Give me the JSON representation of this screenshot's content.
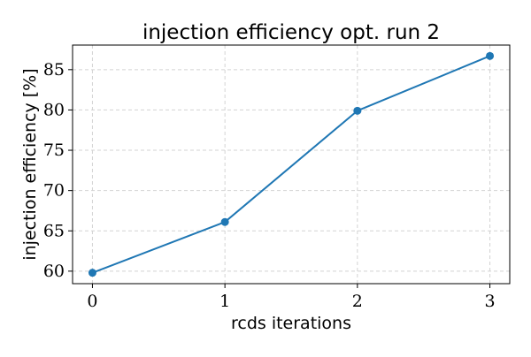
{
  "chart_data": {
    "type": "line",
    "title": "injection efficiency opt.  run 2",
    "xlabel": "rcds iterations",
    "ylabel": "injection efficiency [%]",
    "x": [
      0,
      1,
      2,
      3
    ],
    "series": [
      {
        "values": [
          59.8,
          66.1,
          79.9,
          86.7
        ],
        "color": "#1f77b4",
        "marker": "circle"
      }
    ],
    "xticks": [
      0,
      1,
      2,
      3
    ],
    "yticks": [
      60,
      65,
      70,
      75,
      80,
      85
    ],
    "xlim": [
      -0.15,
      3.15
    ],
    "ylim": [
      58.45,
      88.05
    ],
    "grid": true,
    "grid_style": "dashed",
    "grid_color": "#d3d3d3"
  }
}
